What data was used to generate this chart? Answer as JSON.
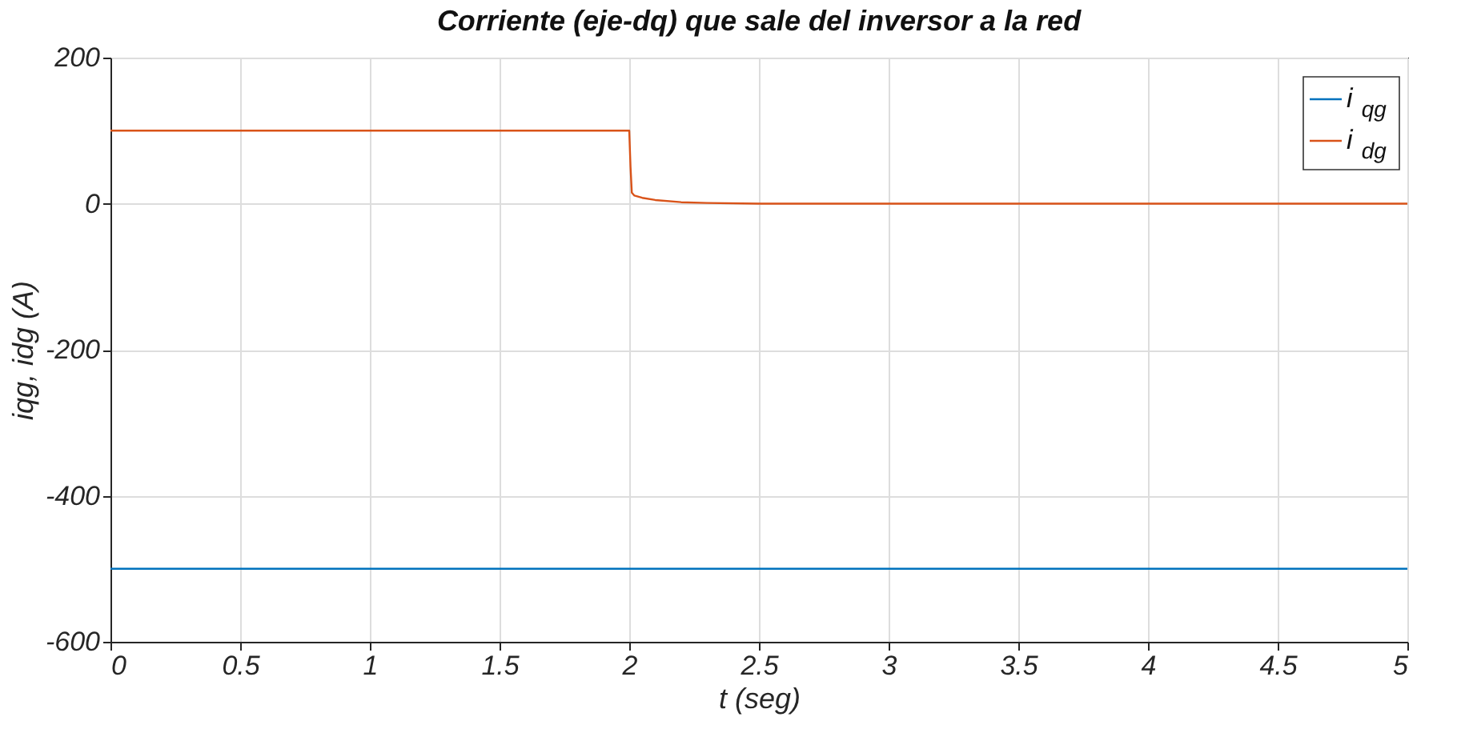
{
  "chart_data": {
    "type": "line",
    "title": "Corriente (eje-dq) que sale del inversor a la red",
    "xlabel": "t (seg)",
    "ylabel": "iqg, idg (A)",
    "series": [
      {
        "name": "i$_{qg}$",
        "color": "#0072bd",
        "x": [
          0,
          5
        ],
        "values": [
          -500,
          -500
        ]
      },
      {
        "name": "i$_{dg}$",
        "color": "#d95319",
        "x": [
          0,
          2,
          2.005,
          2.01,
          2.02,
          2.05,
          2.1,
          2.2,
          2.3,
          2.5,
          5
        ],
        "values": [
          100,
          100,
          50,
          15,
          11,
          8,
          5,
          2,
          1,
          0,
          0
        ]
      }
    ],
    "xlim": [
      0,
      5
    ],
    "xticks": [
      0,
      0.5,
      1,
      1.5,
      2,
      2.5,
      3,
      3.5,
      4,
      4.5,
      5
    ],
    "ylim": [
      -600,
      200
    ],
    "yticks": [
      -600,
      -400,
      -200,
      0,
      200
    ],
    "grid": true,
    "legend": "top right",
    "marker": "none",
    "line_style": "solid"
  }
}
